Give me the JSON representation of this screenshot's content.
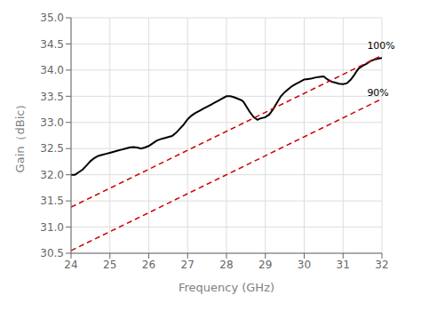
{
  "chart_data": {
    "type": "line",
    "xlabel": "Frequency (GHz)",
    "ylabel": "Gain（dBic）",
    "xlim": [
      24,
      32
    ],
    "ylim": [
      30.5,
      35.0
    ],
    "xticks": [
      24,
      25,
      26,
      27,
      28,
      29,
      30,
      31,
      32
    ],
    "yticks": [
      30.5,
      {
        "value": 31.0,
        "label": "31.0"
      },
      31.5,
      {
        "value": 32.0,
        "label": "32.0"
      },
      32.5,
      {
        "value": 33.0,
        "label": "33.0"
      },
      33.5,
      {
        "value": 34.0,
        "label": "34.0"
      },
      34.5,
      {
        "value": 35.0,
        "label": "35.0"
      }
    ],
    "grid": true,
    "series": [
      {
        "x": [
          24.0,
          24.1,
          24.2,
          24.3,
          24.4,
          24.5,
          24.6,
          24.7,
          24.8,
          24.9,
          25.0,
          25.1,
          25.2,
          25.3,
          25.4,
          25.5,
          25.6,
          25.7,
          25.8,
          25.9,
          26.0,
          26.1,
          26.2,
          26.3,
          26.4,
          26.5,
          26.6,
          26.7,
          26.8,
          26.9,
          27.0,
          27.1,
          27.2,
          27.3,
          27.4,
          27.5,
          27.6,
          27.7,
          27.8,
          27.9,
          28.0,
          28.1,
          28.2,
          28.3,
          28.4,
          28.45,
          28.5,
          28.6,
          28.7,
          28.8,
          28.85,
          29.0,
          29.1,
          29.2,
          29.3,
          29.4,
          29.5,
          29.6,
          29.7,
          29.8,
          29.9,
          30.0,
          30.1,
          30.2,
          30.3,
          30.4,
          30.5,
          30.6,
          30.7,
          30.8,
          30.9,
          31.0,
          31.1,
          31.2,
          31.3,
          31.35,
          31.4,
          31.5,
          31.6,
          31.7,
          31.8,
          31.9,
          32.0
        ],
        "values": [
          32.0,
          32.0,
          32.05,
          32.1,
          32.18,
          32.26,
          32.32,
          32.36,
          32.38,
          32.4,
          32.42,
          32.44,
          32.46,
          32.48,
          32.5,
          32.52,
          32.53,
          32.52,
          32.5,
          32.52,
          32.55,
          32.6,
          32.65,
          32.68,
          32.7,
          32.72,
          32.74,
          32.8,
          32.88,
          32.96,
          33.06,
          33.13,
          33.18,
          33.22,
          33.26,
          33.3,
          33.34,
          33.38,
          33.42,
          33.46,
          33.5,
          33.5,
          33.48,
          33.45,
          33.42,
          33.38,
          33.32,
          33.2,
          33.1,
          33.05,
          33.07,
          33.1,
          33.15,
          33.25,
          33.38,
          33.5,
          33.58,
          33.64,
          33.7,
          33.74,
          33.78,
          33.82,
          33.83,
          33.84,
          33.86,
          33.87,
          33.88,
          33.82,
          33.78,
          33.76,
          33.74,
          33.73,
          33.75,
          33.82,
          33.92,
          33.98,
          34.03,
          34.08,
          34.12,
          34.17,
          34.2,
          34.22,
          34.23
        ],
        "color": "#000000",
        "line_style": "solid"
      },
      {
        "x": [
          24,
          32
        ],
        "values": [
          31.38,
          34.28
        ],
        "color": "#cc0000",
        "line_style": "dashed"
      },
      {
        "x": [
          24,
          32
        ],
        "values": [
          30.55,
          33.45
        ],
        "color": "#cc0000",
        "line_style": "dashed"
      }
    ],
    "annotations": [
      {
        "text": "100%",
        "x": 31.62,
        "y": 34.48
      },
      {
        "text": "90%",
        "x": 31.62,
        "y": 33.57
      }
    ]
  }
}
